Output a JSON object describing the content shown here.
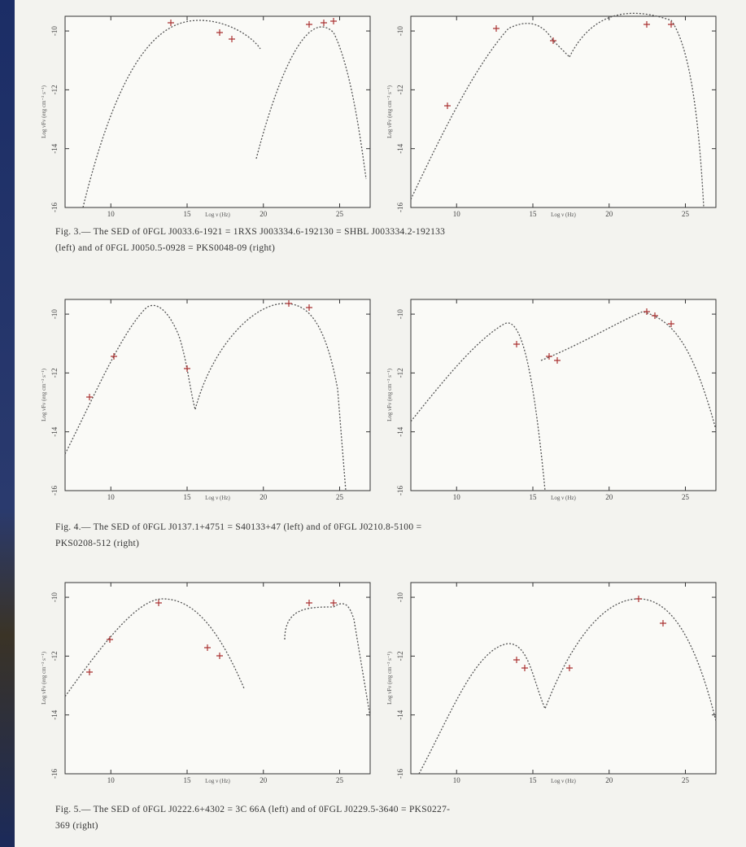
{
  "figures": [
    {
      "caption": [
        "Fig. 3.— The SED of 0FGL J0033.6-1921 = 1RXS J003334.6-192130 = SHBL J003334.2-192133",
        "(left) and of 0FGL J0050.5-0928 = PKS0048-09 (right)"
      ],
      "panels": [
        {
          "xlabel": "Log ν (Hz)",
          "ylabel": "Log νFν (erg cm⁻² s⁻¹)",
          "xlim": [
            7,
            27
          ],
          "ylim": [
            -16,
            -9.5
          ],
          "xticks": [
            10,
            15,
            20,
            25
          ],
          "yticks": [
            -10,
            -12,
            -14,
            -16
          ]
        },
        {
          "xlabel": "Log ν (Hz)",
          "ylabel": "Log νFν (erg cm⁻² s⁻¹)",
          "xlim": [
            7,
            27
          ],
          "ylim": [
            -16,
            -9.5
          ],
          "xticks": [
            10,
            15,
            20,
            25
          ],
          "yticks": [
            -10,
            -12,
            -14,
            -16
          ]
        }
      ]
    },
    {
      "caption": [
        "Fig. 4.— The SED of 0FGL J0137.1+4751 = S40133+47 (left) and of 0FGL J0210.8-5100 =",
        "PKS0208-512 (right)"
      ],
      "panels": [
        {
          "xlabel": "Log ν (Hz)",
          "ylabel": "Log νFν (erg cm⁻² s⁻¹)",
          "xlim": [
            7,
            27
          ],
          "ylim": [
            -16,
            -9.5
          ],
          "xticks": [
            10,
            15,
            20,
            25
          ],
          "yticks": [
            -10,
            -12,
            -14,
            -16
          ]
        },
        {
          "xlabel": "Log ν (Hz)",
          "ylabel": "Log νFν (erg cm⁻² s⁻¹)",
          "xlim": [
            7,
            27
          ],
          "ylim": [
            -16,
            -9.5
          ],
          "xticks": [
            10,
            15,
            20,
            25
          ],
          "yticks": [
            -10,
            -12,
            -14,
            -16
          ]
        }
      ]
    },
    {
      "caption": [
        "Fig. 5.— The SED of 0FGL J0222.6+4302 = 3C 66A (left) and of 0FGL J0229.5-3640 = PKS0227-",
        "369 (right)"
      ],
      "panels": [
        {
          "xlabel": "Log ν (Hz)",
          "ylabel": "Log νFν (erg cm⁻² s⁻¹)",
          "xlim": [
            7,
            27
          ],
          "ylim": [
            -16,
            -9.5
          ],
          "xticks": [
            10,
            15,
            20,
            25
          ],
          "yticks": [
            -10,
            -12,
            -14,
            -16
          ]
        },
        {
          "xlabel": "Log ν (Hz)",
          "ylabel": "Log νFν (erg cm⁻² s⁻¹)",
          "xlim": [
            7,
            27
          ],
          "ylim": [
            -16,
            -9.5
          ],
          "xticks": [
            10,
            15,
            20,
            25
          ],
          "yticks": [
            -10,
            -12,
            -14,
            -16
          ]
        }
      ]
    }
  ]
}
